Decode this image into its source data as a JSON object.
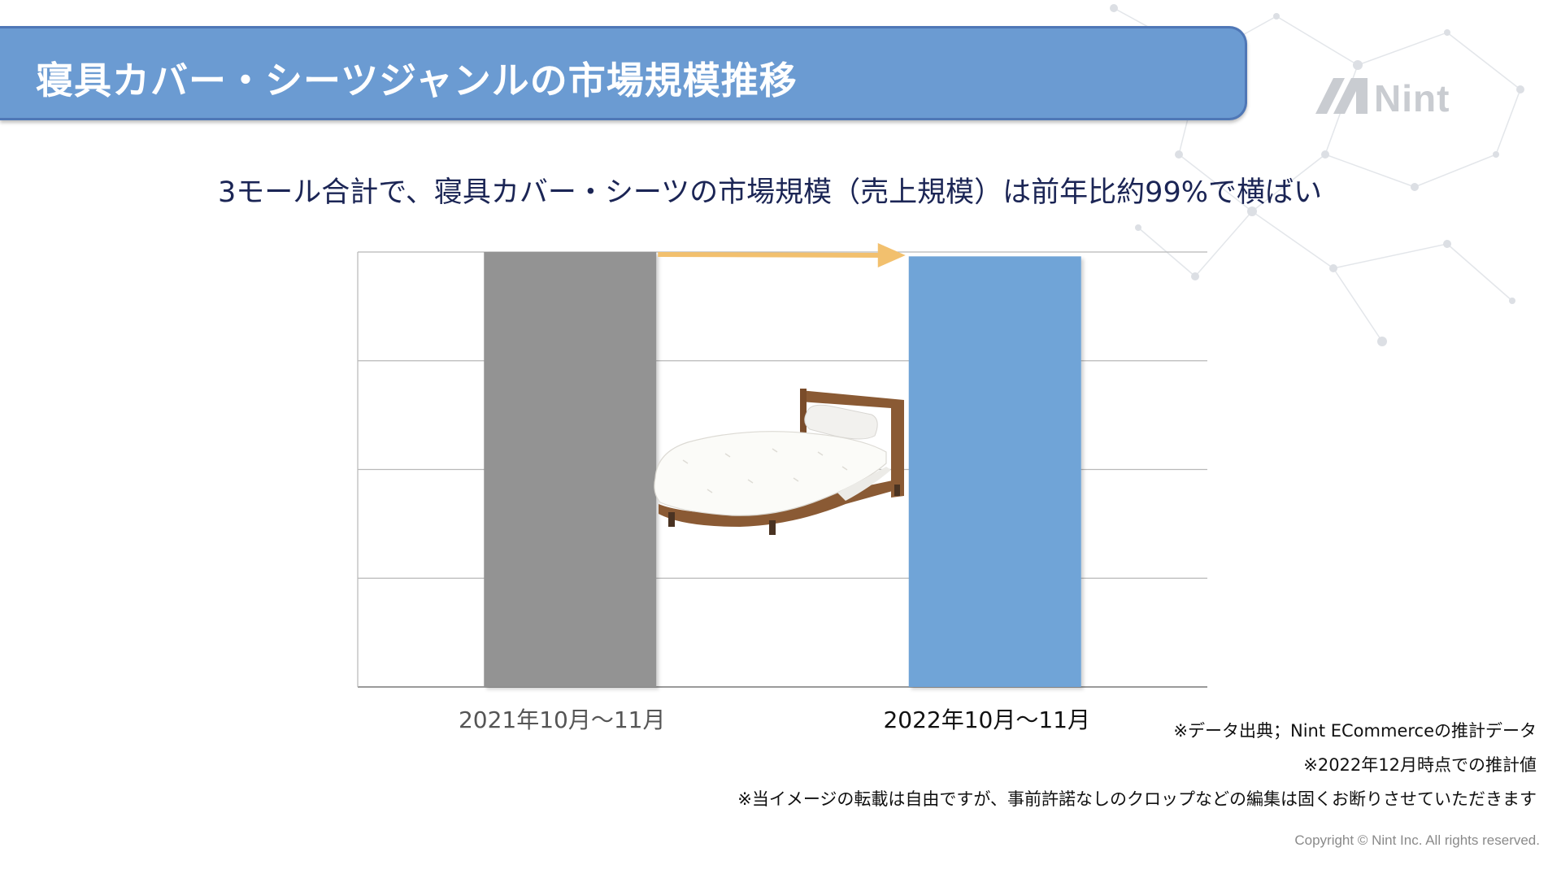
{
  "header": {
    "title": "寝具カバー・シーツジャンルの市場規模推移",
    "logo_text": "Nint"
  },
  "subtitle": "3モール合計で、寝具カバー・シーツの市場規模（売上規模）は前年比約99%で横ばい",
  "chart_data": {
    "type": "bar",
    "categories": [
      "2021年10月〜11月",
      "2022年10月〜11月"
    ],
    "series": [
      {
        "values": [
          100,
          99
        ],
        "colors": [
          "#939393",
          "#6fa4d7"
        ]
      }
    ],
    "ylim": [
      0,
      100
    ],
    "grid": true,
    "gridlines": 4,
    "tick_label_colors": [
      "#555555",
      "#111111"
    ],
    "annotation": {
      "type": "arrow",
      "from": "2021年10月〜11月",
      "to": "2022年10月〜11月",
      "color": "#f2c06e"
    }
  },
  "illustration": {
    "icon": "bed-icon"
  },
  "notes": [
    "※データ出典；Nint ECommerceの推計データ",
    "※2022年12月時点での推計値",
    "※当イメージの転載は自由ですが、事前許諾なしのクロップなどの編集は固くお断りさせていただきます"
  ],
  "copyright": "Copyright © Nint Inc. All rights reserved.",
  "colors": {
    "banner": "#6b9bd2",
    "banner_border": "#4f77b6",
    "subtitle_text": "#1b2555",
    "arrow": "#f2c06e"
  }
}
